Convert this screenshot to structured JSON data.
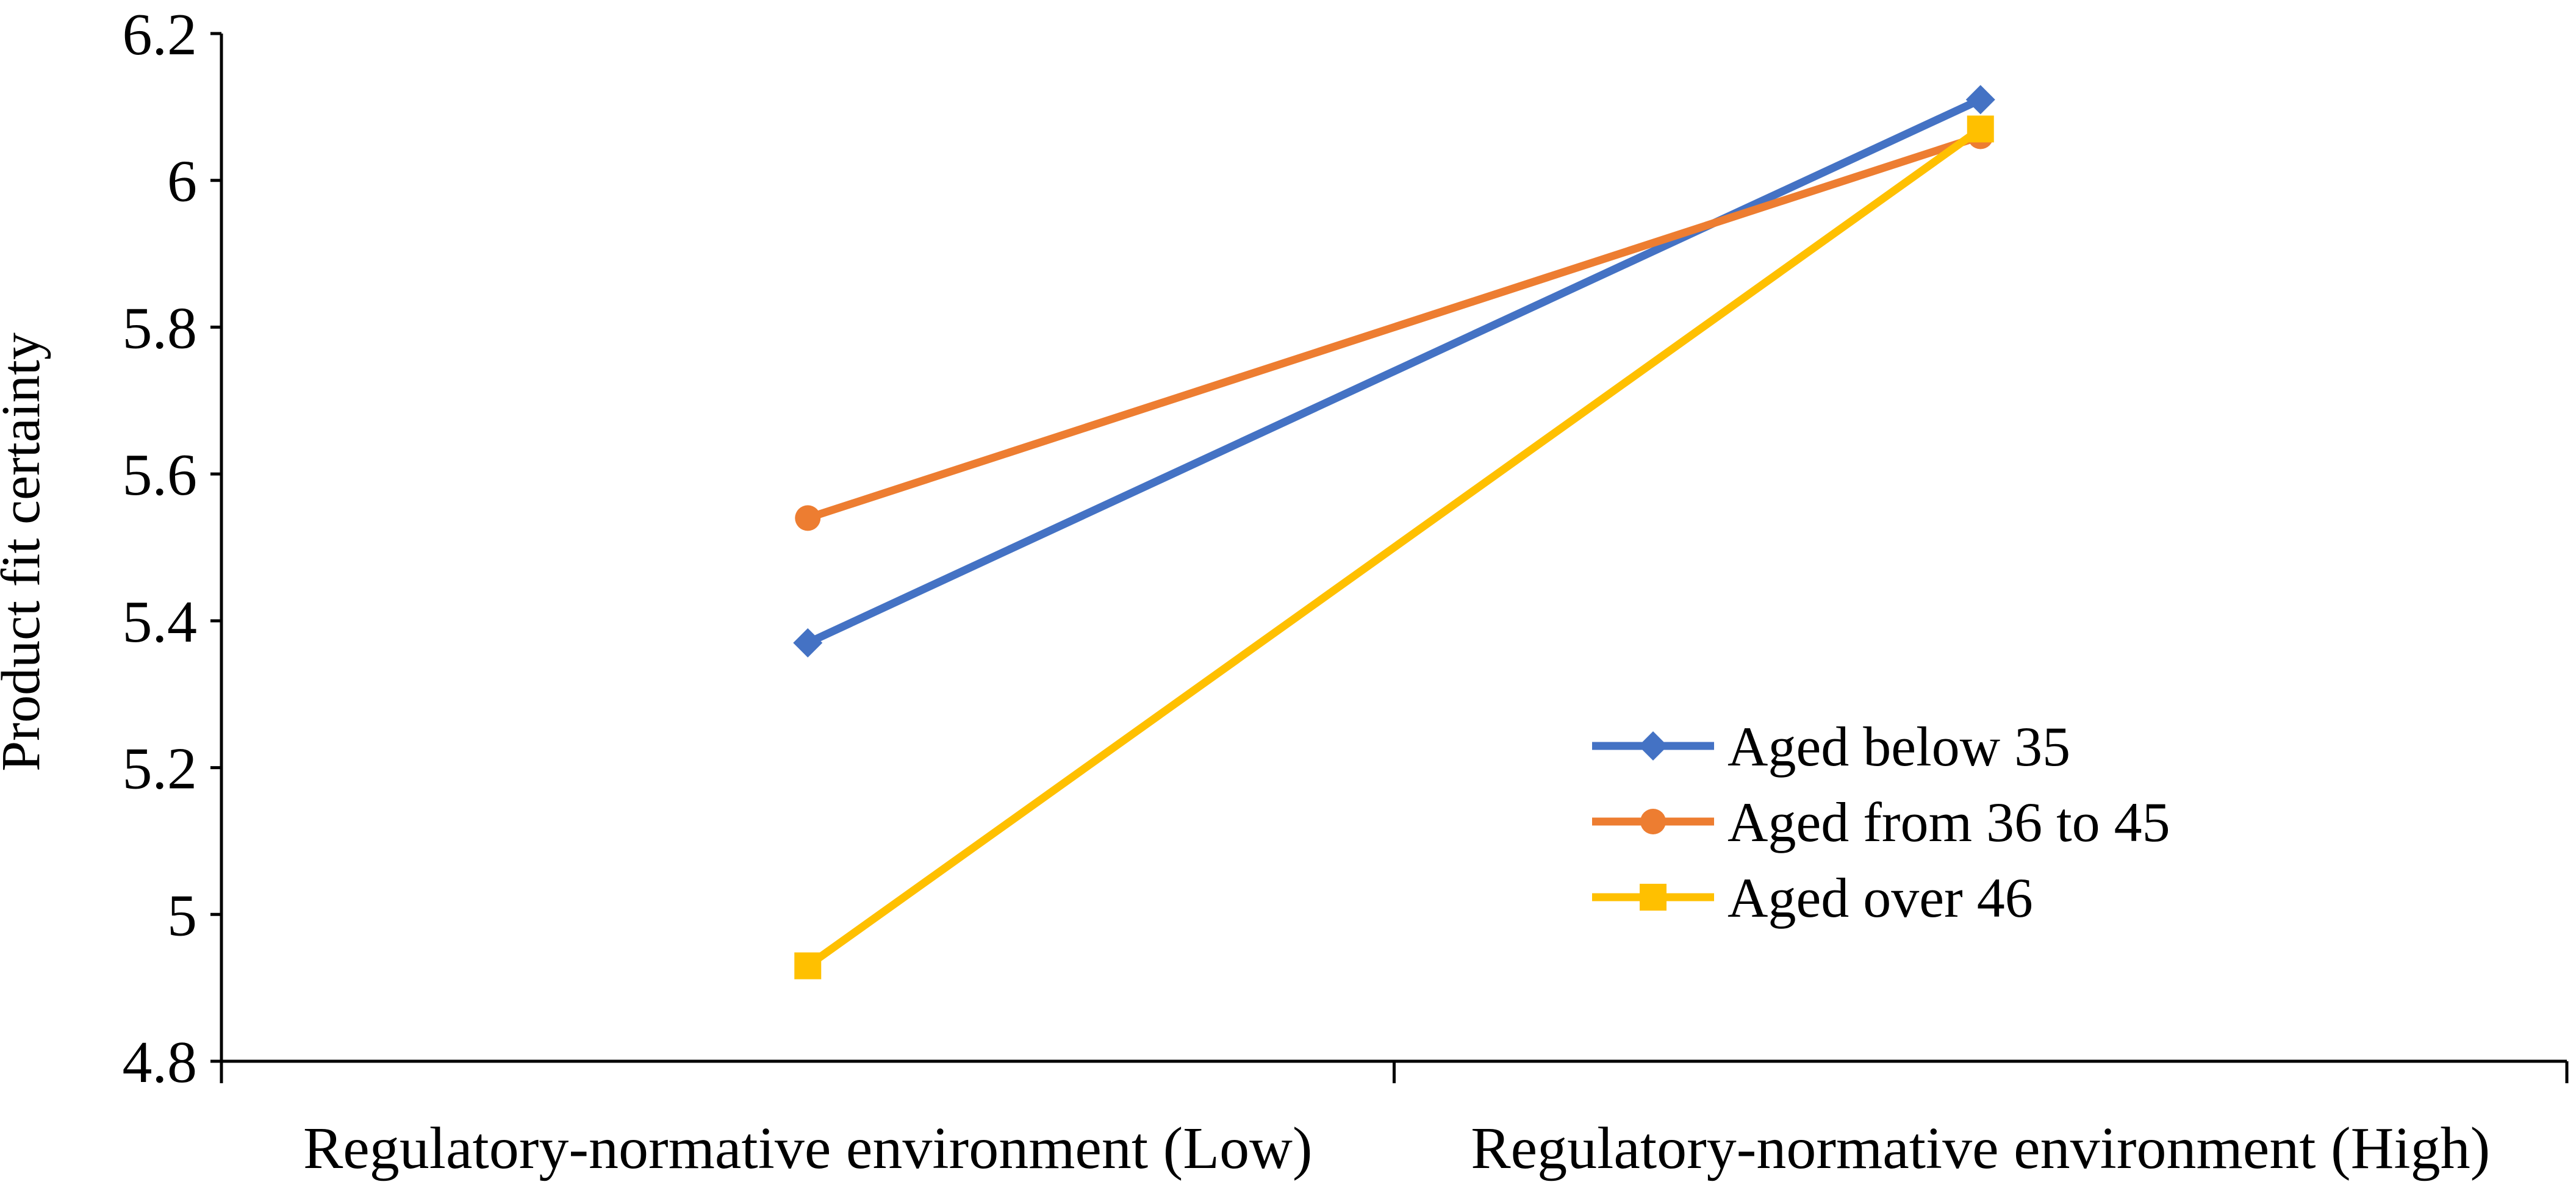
{
  "chart_data": {
    "type": "line",
    "title": "",
    "xlabel": "",
    "ylabel": "Product fit certainty",
    "categories": [
      "Regulatory-normative environment (Low)",
      "Regulatory-normative environment (High)"
    ],
    "ylim": [
      4.8,
      6.2
    ],
    "yticks": [
      4.8,
      5,
      5.2,
      5.4,
      5.6,
      5.8,
      6,
      6.2
    ],
    "ytick_labels": [
      "4.8",
      "5",
      "5.2",
      "5.4",
      "5.6",
      "5.8",
      "6",
      "6.2"
    ],
    "grid": false,
    "legend_position": "bottom-right",
    "series": [
      {
        "name": "Aged below 35",
        "values": [
          5.37,
          6.11
        ],
        "color": "#4472C4",
        "marker": "diamond"
      },
      {
        "name": "Aged from 36 to 45",
        "values": [
          5.54,
          6.06
        ],
        "color": "#ED7D31",
        "marker": "circle"
      },
      {
        "name": "Aged over 46",
        "values": [
          4.93,
          6.07
        ],
        "color": "#FFC000",
        "marker": "square"
      }
    ]
  }
}
